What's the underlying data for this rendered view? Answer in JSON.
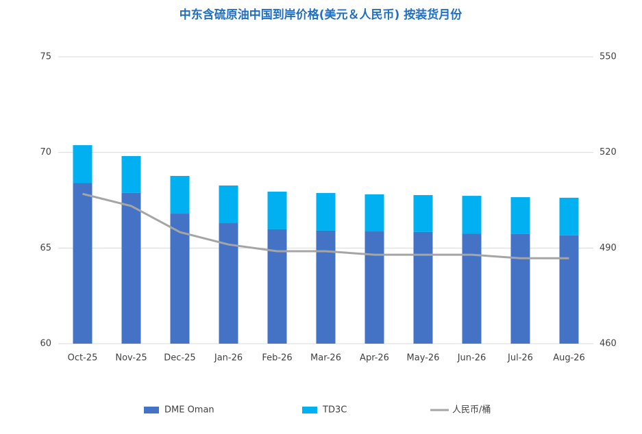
{
  "chart_data": {
    "type": "bar",
    "title": "中东含硫原油中国到岸价格(美元＆人民币) 按装货月份",
    "categories": [
      "Oct-25",
      "Nov-25",
      "Dec-25",
      "Jan-26",
      "Feb-26",
      "Mar-26",
      "Apr-26",
      "May-26",
      "Jun-26",
      "Jul-26",
      "Aug-26"
    ],
    "stacked": true,
    "series": [
      {
        "name": "DME Oman",
        "color": "#4472c4",
        "type": "bar",
        "values": [
          68.41,
          67.88,
          66.8,
          66.3,
          65.98,
          65.91,
          65.87,
          65.84,
          65.76,
          65.73,
          65.66
        ]
      },
      {
        "name": "TD3C",
        "color": "#00b0f0",
        "type": "bar",
        "values": [
          1.97,
          1.93,
          1.97,
          1.97,
          1.97,
          1.97,
          1.94,
          1.93,
          1.97,
          1.93,
          1.97
        ]
      },
      {
        "name": "人民币/桶",
        "color": "#a5a5a5",
        "type": "line",
        "axis": "y2",
        "values": [
          507.0,
          503.2,
          495.0,
          491.1,
          489.0,
          489.0,
          487.9,
          487.9,
          487.9,
          486.8,
          486.8
        ]
      }
    ],
    "ylim": [
      60,
      75
    ],
    "yticks": [
      60,
      65,
      70,
      75
    ],
    "y2lim": [
      460,
      550
    ],
    "y2ticks": [
      460,
      490,
      520,
      550
    ],
    "grid": true,
    "legend": "bottom"
  }
}
